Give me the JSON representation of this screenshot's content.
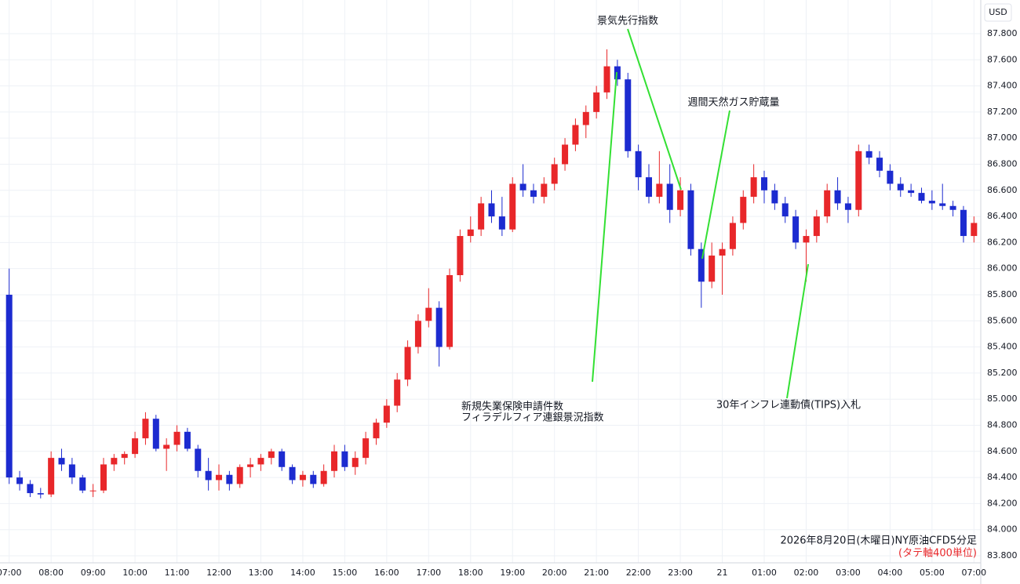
{
  "chart_data": {
    "type": "candlestick",
    "currency": "USD",
    "caption": "2026年8月20日(木曜日)NY原油CFD5分足",
    "caption_note": "(タテ軸400単位)",
    "annotations": [
      "景気先行指数",
      "週間天然ガス貯蔵量",
      "新規失業保険申請件数",
      "フィラデルフィア連銀景況指数",
      "30年インフレ連動債(TIPS)入札"
    ],
    "up_color": "#e8272a",
    "down_color": "#1c2bd0",
    "grid": true,
    "ylim": [
      83.746,
      88.058
    ],
    "yticks": [
      {
        "value": 83.8,
        "label": "83.800"
      },
      {
        "value": 84.0,
        "label": "84.000"
      },
      {
        "value": 84.2,
        "label": "84.200"
      },
      {
        "value": 84.4,
        "label": "84.400"
      },
      {
        "value": 84.6,
        "label": "84.600"
      },
      {
        "value": 84.8,
        "label": "84.800"
      },
      {
        "value": 85.0,
        "label": "85.000"
      },
      {
        "value": 85.2,
        "label": "85.200"
      },
      {
        "value": 85.4,
        "label": "85.400"
      },
      {
        "value": 85.6,
        "label": "85.600"
      },
      {
        "value": 85.8,
        "label": "85.800"
      },
      {
        "value": 86.0,
        "label": "86.000"
      },
      {
        "value": 86.2,
        "label": "86.200"
      },
      {
        "value": 86.4,
        "label": "86.400"
      },
      {
        "value": 86.6,
        "label": "86.600"
      },
      {
        "value": 86.8,
        "label": "86.800"
      },
      {
        "value": 87.0,
        "label": "87.000"
      },
      {
        "value": 87.2,
        "label": "87.200"
      },
      {
        "value": 87.4,
        "label": "87.400"
      },
      {
        "value": 87.6,
        "label": "87.600"
      },
      {
        "value": 87.8,
        "label": "87.800"
      }
    ],
    "xticks": [
      {
        "value": 0,
        "label": "07:00"
      },
      {
        "value": 4,
        "label": "08:00"
      },
      {
        "value": 8,
        "label": "09:00"
      },
      {
        "value": 12,
        "label": "10:00"
      },
      {
        "value": 16,
        "label": "11:00"
      },
      {
        "value": 20,
        "label": "12:00"
      },
      {
        "value": 24,
        "label": "13:00"
      },
      {
        "value": 28,
        "label": "14:00"
      },
      {
        "value": 32,
        "label": "15:00"
      },
      {
        "value": 36,
        "label": "16:00"
      },
      {
        "value": 40,
        "label": "17:00"
      },
      {
        "value": 44,
        "label": "18:00"
      },
      {
        "value": 48,
        "label": "19:00"
      },
      {
        "value": 52,
        "label": "20:00"
      },
      {
        "value": 56,
        "label": "21:00"
      },
      {
        "value": 60,
        "label": "22:00"
      },
      {
        "value": 64,
        "label": "23:00"
      },
      {
        "value": 68,
        "label": "21"
      },
      {
        "value": 72,
        "label": "01:00"
      },
      {
        "value": 76,
        "label": "02:00"
      },
      {
        "value": 80,
        "label": "03:00"
      },
      {
        "value": 84,
        "label": "04:00"
      },
      {
        "value": 88,
        "label": "05:00"
      },
      {
        "value": 92,
        "label": "07:00"
      }
    ],
    "ohlc": [
      [
        85.8,
        86.0,
        84.35,
        84.4
      ],
      [
        84.4,
        84.45,
        84.3,
        84.35
      ],
      [
        84.35,
        84.38,
        84.25,
        84.28
      ],
      [
        84.28,
        84.32,
        84.24,
        84.27
      ],
      [
        84.27,
        84.6,
        84.25,
        84.55
      ],
      [
        84.55,
        84.62,
        84.45,
        84.5
      ],
      [
        84.5,
        84.55,
        84.35,
        84.4
      ],
      [
        84.4,
        84.42,
        84.28,
        84.3
      ],
      [
        84.3,
        84.35,
        84.25,
        84.3
      ],
      [
        84.3,
        84.55,
        84.28,
        84.5
      ],
      [
        84.5,
        84.58,
        84.45,
        84.55
      ],
      [
        84.55,
        84.6,
        84.5,
        84.58
      ],
      [
        84.58,
        84.75,
        84.55,
        84.7
      ],
      [
        84.7,
        84.9,
        84.65,
        84.85
      ],
      [
        84.85,
        84.88,
        84.6,
        84.62
      ],
      [
        84.62,
        84.7,
        84.45,
        84.65
      ],
      [
        84.65,
        84.8,
        84.6,
        84.75
      ],
      [
        84.75,
        84.78,
        84.6,
        84.62
      ],
      [
        84.62,
        84.65,
        84.4,
        84.45
      ],
      [
        84.45,
        84.55,
        84.3,
        84.38
      ],
      [
        84.38,
        84.5,
        84.3,
        84.42
      ],
      [
        84.42,
        84.45,
        84.3,
        84.35
      ],
      [
        84.35,
        84.5,
        84.32,
        84.48
      ],
      [
        84.48,
        84.55,
        84.4,
        84.5
      ],
      [
        84.5,
        84.58,
        84.45,
        84.55
      ],
      [
        84.55,
        84.62,
        84.5,
        84.6
      ],
      [
        84.6,
        84.62,
        84.45,
        84.48
      ],
      [
        84.48,
        84.5,
        84.35,
        84.38
      ],
      [
        84.38,
        84.45,
        84.33,
        84.42
      ],
      [
        84.42,
        84.45,
        84.32,
        84.35
      ],
      [
        84.35,
        84.5,
        84.33,
        84.45
      ],
      [
        84.45,
        84.65,
        84.4,
        84.6
      ],
      [
        84.6,
        84.65,
        84.45,
        84.48
      ],
      [
        84.48,
        84.6,
        84.42,
        84.55
      ],
      [
        84.55,
        84.75,
        84.5,
        84.7
      ],
      [
        84.7,
        84.85,
        84.65,
        84.82
      ],
      [
        84.82,
        85.0,
        84.78,
        84.95
      ],
      [
        84.95,
        85.2,
        84.9,
        85.15
      ],
      [
        85.15,
        85.45,
        85.1,
        85.4
      ],
      [
        85.4,
        85.65,
        85.35,
        85.6
      ],
      [
        85.6,
        85.85,
        85.55,
        85.7
      ],
      [
        85.7,
        85.75,
        85.25,
        85.4
      ],
      [
        85.4,
        86.0,
        85.38,
        85.95
      ],
      [
        85.95,
        86.3,
        85.9,
        86.25
      ],
      [
        86.25,
        86.4,
        86.2,
        86.3
      ],
      [
        86.3,
        86.55,
        86.25,
        86.5
      ],
      [
        86.5,
        86.6,
        86.35,
        86.4
      ],
      [
        86.4,
        86.55,
        86.25,
        86.3
      ],
      [
        86.3,
        86.7,
        86.28,
        86.65
      ],
      [
        86.65,
        86.8,
        86.55,
        86.6
      ],
      [
        86.6,
        86.65,
        86.5,
        86.55
      ],
      [
        86.55,
        86.7,
        86.5,
        86.65
      ],
      [
        86.65,
        86.85,
        86.6,
        86.8
      ],
      [
        86.8,
        87.0,
        86.75,
        86.95
      ],
      [
        86.95,
        87.15,
        86.9,
        87.1
      ],
      [
        87.1,
        87.25,
        87.0,
        87.2
      ],
      [
        87.2,
        87.4,
        87.15,
        87.35
      ],
      [
        87.35,
        87.68,
        87.3,
        87.55
      ],
      [
        87.55,
        87.6,
        87.4,
        87.45
      ],
      [
        87.45,
        87.5,
        86.85,
        86.9
      ],
      [
        86.9,
        86.95,
        86.6,
        86.7
      ],
      [
        86.7,
        86.8,
        86.5,
        86.55
      ],
      [
        86.55,
        86.9,
        86.5,
        86.65
      ],
      [
        86.65,
        86.8,
        86.35,
        86.45
      ],
      [
        86.45,
        86.7,
        86.4,
        86.6
      ],
      [
        86.6,
        86.65,
        86.1,
        86.15
      ],
      [
        86.15,
        86.2,
        85.7,
        85.9
      ],
      [
        85.9,
        86.2,
        85.85,
        86.1
      ],
      [
        86.1,
        86.2,
        85.8,
        86.15
      ],
      [
        86.15,
        86.4,
        86.1,
        86.35
      ],
      [
        86.35,
        86.6,
        86.3,
        86.55
      ],
      [
        86.55,
        86.8,
        86.5,
        86.7
      ],
      [
        86.7,
        86.75,
        86.5,
        86.6
      ],
      [
        86.6,
        86.65,
        86.45,
        86.5
      ],
      [
        86.5,
        86.55,
        86.35,
        86.4
      ],
      [
        86.4,
        86.45,
        86.15,
        86.2
      ],
      [
        86.2,
        86.3,
        85.9,
        86.25
      ],
      [
        86.25,
        86.45,
        86.2,
        86.4
      ],
      [
        86.4,
        86.65,
        86.35,
        86.6
      ],
      [
        86.6,
        86.7,
        86.45,
        86.5
      ],
      [
        86.5,
        86.55,
        86.35,
        86.45
      ],
      [
        86.45,
        86.95,
        86.4,
        86.9
      ],
      [
        86.9,
        86.95,
        86.8,
        86.85
      ],
      [
        86.85,
        86.9,
        86.7,
        86.75
      ],
      [
        86.75,
        86.8,
        86.6,
        86.65
      ],
      [
        86.65,
        86.7,
        86.55,
        86.6
      ],
      [
        86.6,
        86.65,
        86.55,
        86.58
      ],
      [
        86.58,
        86.62,
        86.5,
        86.52
      ],
      [
        86.52,
        86.6,
        86.45,
        86.5
      ],
      [
        86.5,
        86.65,
        86.45,
        86.48
      ],
      [
        86.48,
        86.52,
        86.4,
        86.45
      ],
      [
        86.45,
        86.48,
        86.2,
        86.25
      ],
      [
        86.25,
        86.4,
        86.2,
        86.35
      ]
    ]
  }
}
